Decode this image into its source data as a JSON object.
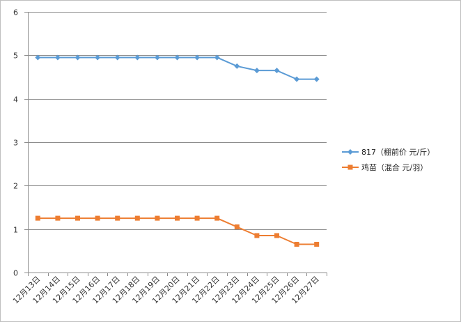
{
  "chart_data": {
    "type": "line",
    "categories": [
      "12月13日",
      "12月14日",
      "12月15日",
      "12月16日",
      "12月17日",
      "12月18日",
      "12月19日",
      "12月20日",
      "12月21日",
      "12月22日",
      "12月23日",
      "12月24日",
      "12月25日",
      "12月26日",
      "12月27日"
    ],
    "series": [
      {
        "name": "817（棚前价 元/斤）",
        "color": "#5b9bd5",
        "marker": "diamond",
        "values": [
          4.95,
          4.95,
          4.95,
          4.95,
          4.95,
          4.95,
          4.95,
          4.95,
          4.95,
          4.95,
          4.75,
          4.65,
          4.65,
          4.45,
          4.45
        ]
      },
      {
        "name": "鸡苗（混合 元/羽）",
        "color": "#ed7d31",
        "marker": "square",
        "values": [
          1.25,
          1.25,
          1.25,
          1.25,
          1.25,
          1.25,
          1.25,
          1.25,
          1.25,
          1.25,
          1.05,
          0.85,
          0.85,
          0.65,
          0.65
        ]
      }
    ],
    "ylim": [
      0,
      6
    ],
    "yticks": [
      "0",
      "1",
      "2",
      "3",
      "4",
      "5",
      "6"
    ],
    "grid": true,
    "legend_position": "right"
  }
}
